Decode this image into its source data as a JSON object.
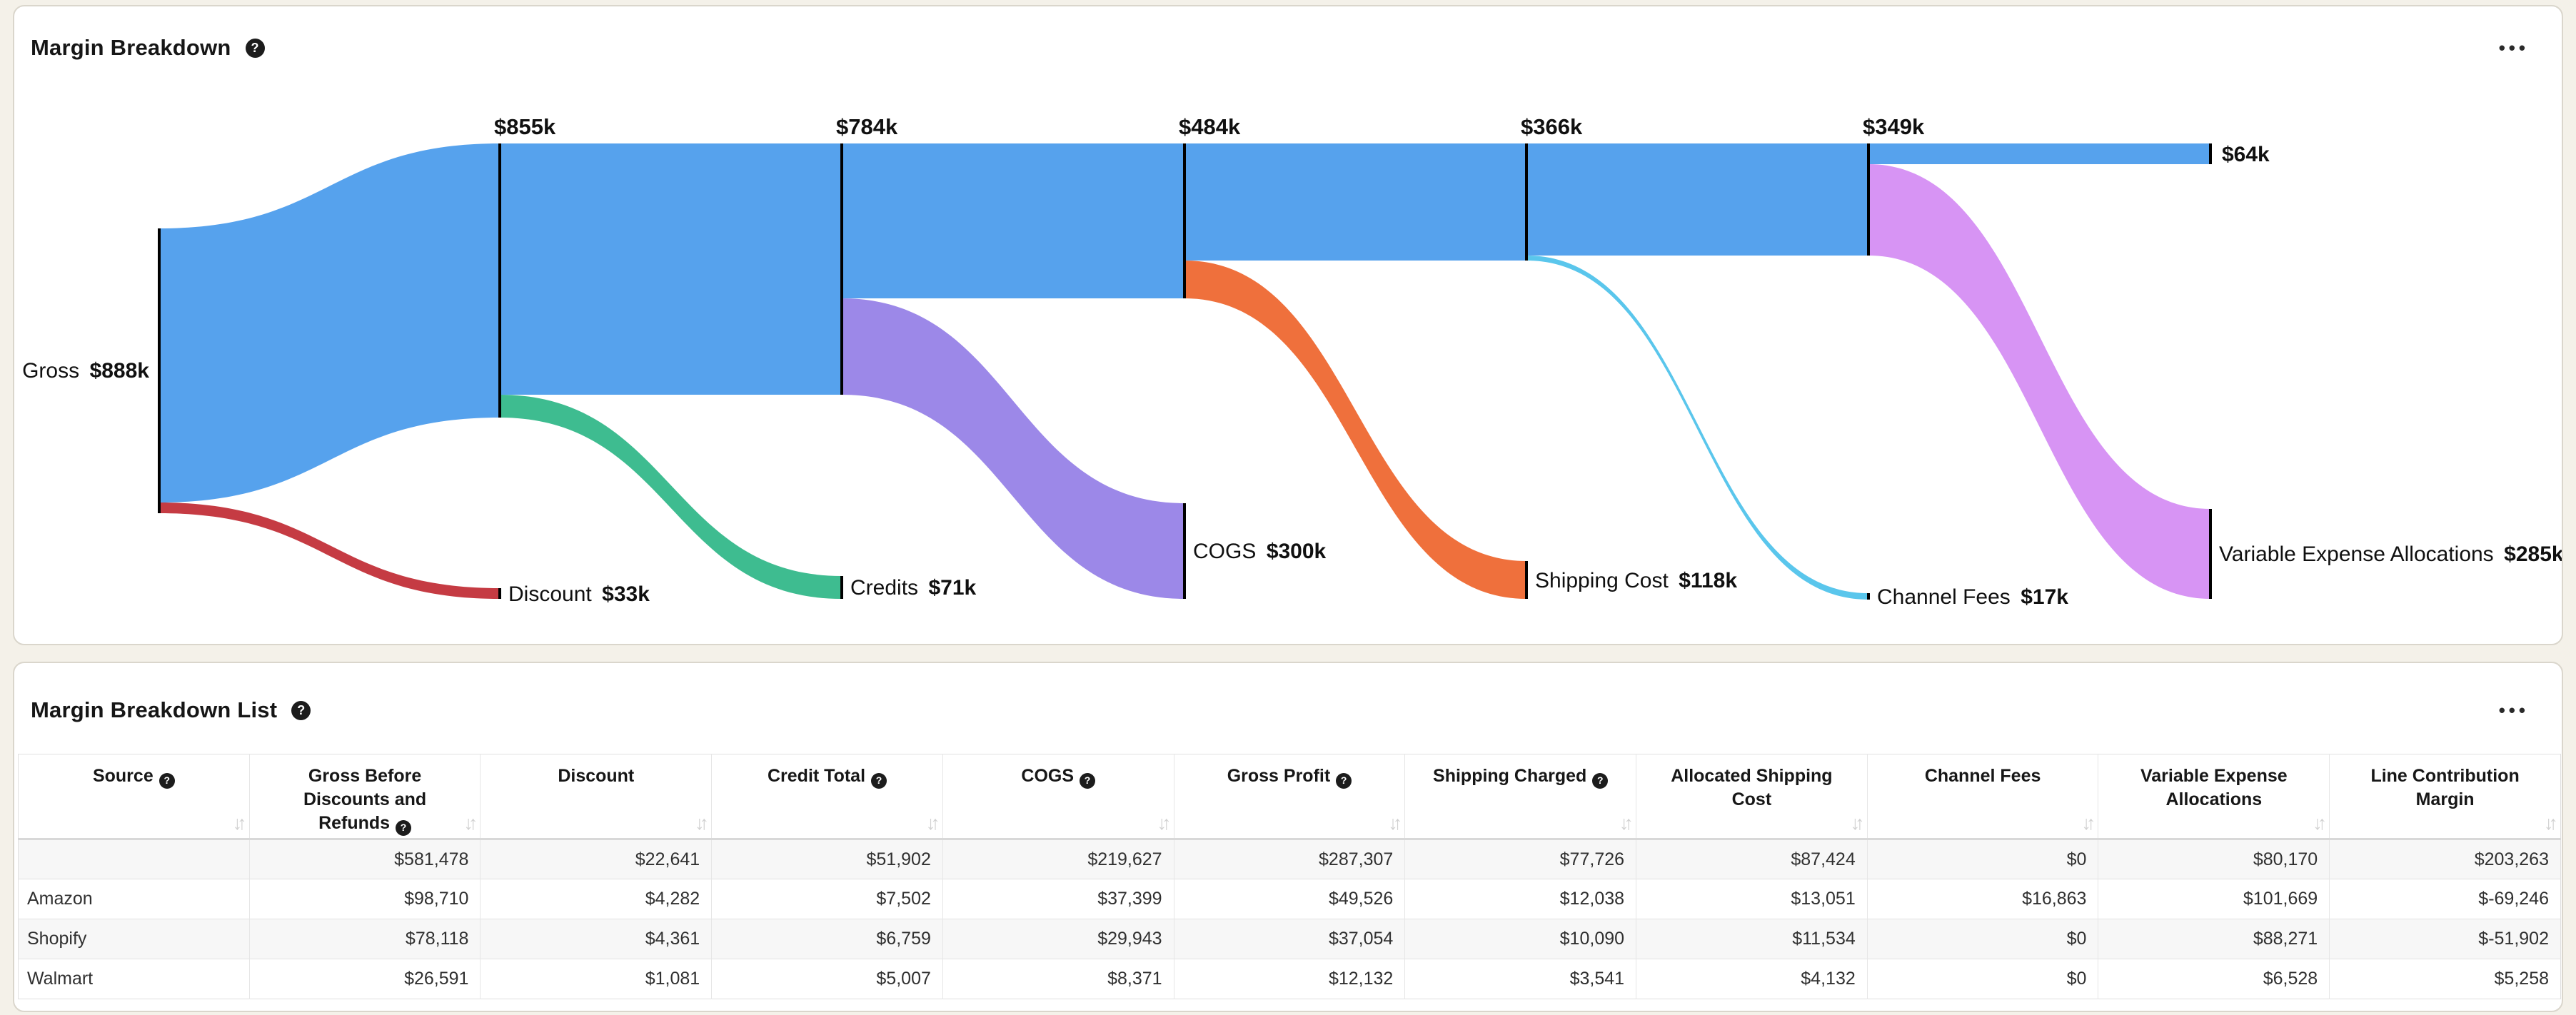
{
  "icons": {
    "help": "?",
    "more_options": "•••",
    "sort": "↓↑"
  },
  "panel1": {
    "title": "Margin Breakdown"
  },
  "panel2": {
    "title": "Margin Breakdown List"
  },
  "chart_data": {
    "type": "sankey",
    "unit": "USD thousands",
    "main_flow": {
      "stages": [
        {
          "label": "Gross",
          "value": 888,
          "value_label": "$888k"
        },
        {
          "value": 855,
          "value_label": "$855k"
        },
        {
          "value": 784,
          "value_label": "$784k"
        },
        {
          "value": 484,
          "value_label": "$484k"
        },
        {
          "value": 366,
          "value_label": "$366k"
        },
        {
          "value": 349,
          "value_label": "$349k"
        },
        {
          "value": 64,
          "value_label": "$64k"
        }
      ]
    },
    "deductions": [
      {
        "name": "Discount",
        "value": 33,
        "value_label": "$33k",
        "from_stage": 0,
        "color": "#c53b43"
      },
      {
        "name": "Credits",
        "value": 71,
        "value_label": "$71k",
        "from_stage": 1,
        "color": "#3ebc90"
      },
      {
        "name": "COGS",
        "value": 300,
        "value_label": "$300k",
        "from_stage": 2,
        "color": "#9c88e8"
      },
      {
        "name": "Shipping Cost",
        "value": 118,
        "value_label": "$118k",
        "from_stage": 3,
        "color": "#ef703c"
      },
      {
        "name": "Channel Fees",
        "value": 17,
        "value_label": "$17k",
        "from_stage": 4,
        "color": "#5ac6ec"
      },
      {
        "name": "Variable Expense Allocations",
        "value": 285,
        "value_label": "$285k",
        "from_stage": 5,
        "color": "#d794f4"
      }
    ],
    "colors": {
      "main_flow": "#56a2ed",
      "node_bar": "#000000"
    }
  },
  "table": {
    "columns": [
      {
        "label": "Source",
        "help": true
      },
      {
        "label": "Gross Before Discounts and Refunds",
        "help": true
      },
      {
        "label": "Discount",
        "help": false
      },
      {
        "label": "Credit Total",
        "help": true
      },
      {
        "label": "COGS",
        "help": true
      },
      {
        "label": "Gross Profit",
        "help": true
      },
      {
        "label": "Shipping Charged",
        "help": true
      },
      {
        "label": "Allocated Shipping Cost",
        "help": false
      },
      {
        "label": "Channel Fees",
        "help": false
      },
      {
        "label": "Variable Expense Allocations",
        "help": false
      },
      {
        "label": "Line Contribution Margin",
        "help": false
      }
    ],
    "rows": [
      [
        "",
        "$581,478",
        "$22,641",
        "$51,902",
        "$219,627",
        "$287,307",
        "$77,726",
        "$87,424",
        "$0",
        "$80,170",
        "$203,263"
      ],
      [
        "Amazon",
        "$98,710",
        "$4,282",
        "$7,502",
        "$37,399",
        "$49,526",
        "$12,038",
        "$13,051",
        "$16,863",
        "$101,669",
        "$-69,246"
      ],
      [
        "Shopify",
        "$78,118",
        "$4,361",
        "$6,759",
        "$29,943",
        "$37,054",
        "$10,090",
        "$11,534",
        "$0",
        "$88,271",
        "$-51,902"
      ],
      [
        "Walmart",
        "$26,591",
        "$1,081",
        "$5,007",
        "$8,371",
        "$12,132",
        "$3,541",
        "$4,132",
        "$0",
        "$6,528",
        "$5,258"
      ]
    ]
  }
}
